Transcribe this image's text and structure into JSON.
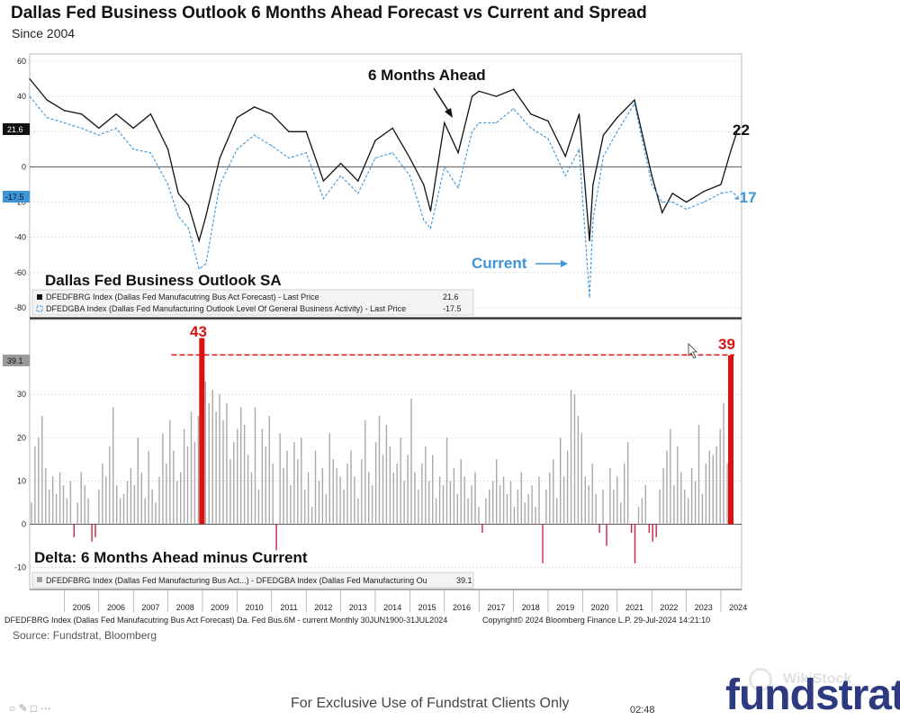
{
  "header": {
    "title": "Dallas Fed Business Outlook 6 Months Ahead Forecast vs Current and Spread",
    "subtitle": "Since 2004"
  },
  "annotations": {
    "six_months": "6 Months Ahead",
    "current": "Current",
    "top_panel_title": "Dallas Fed Business Outlook SA",
    "bottom_panel_title": "Delta: 6 Months Ahead minus Current",
    "end_forecast": "22",
    "end_current": "-17",
    "bar_2009": "43",
    "bar_2024": "39"
  },
  "legend_top": {
    "series1": "DFEDFBRG Index (Dallas Fed Manufacutring Bus Act Forecast) - Last Price",
    "series1_value": "21.6",
    "series2": "DFEDGBA Index (Dallas Fed Manufacturing Outlook Level Of General Business Activity) - Last Price",
    "series2_value": "-17.5"
  },
  "legend_bottom": {
    "series": "DFEDFBRG Index (Dallas Fed Manufacturing Bus Act...) - DFEDGBA Index (Dallas Fed Manufacturing Ou",
    "value": "39.1"
  },
  "axis_badges": {
    "forecast_last": "21.6",
    "current_last": "-17.5",
    "spread_last": "39.1"
  },
  "footer": {
    "left": "DFEDFBRG Index (Dallas Fed Manufacutring Bus Act Forecast) Da. Fed Bus.6M - current  Monthly 30JUN1900-31JUL2024",
    "right": "Copyright© 2024 Bloomberg Finance L.P.      29-Jul-2024 14:21:10",
    "source": "Source: Fundstrat, Bloomberg",
    "exclusive": "For Exclusive Use of Fundstrat Clients Only",
    "time": "02:48",
    "brand": "fundstrat",
    "watermark": "WikiStock"
  },
  "colors": {
    "forecast": "#111111",
    "current": "#3b95d8",
    "spread_pos": "#a9a9a9",
    "spread_neg": "#cc2244",
    "highlight": "#dd1111"
  },
  "chart_data": [
    {
      "type": "line",
      "title": "Dallas Fed Business Outlook SA",
      "x_labels": [
        "2005",
        "2006",
        "2007",
        "2008",
        "2009",
        "2010",
        "2011",
        "2012",
        "2013",
        "2014",
        "2015",
        "2016",
        "2017",
        "2018",
        "2019",
        "2020",
        "2021",
        "2022",
        "2023",
        "2024"
      ],
      "ylim": [
        -80,
        60
      ],
      "yticks": [
        60,
        40,
        20,
        0,
        -20,
        -40,
        -60,
        -80
      ],
      "series": [
        {
          "name": "DFEDFBRG Index (6 Months Ahead)",
          "t": [
            2004.0,
            2004.5,
            2005.0,
            2005.5,
            2006.0,
            2006.5,
            2007.0,
            2007.5,
            2008.0,
            2008.3,
            2008.6,
            2008.9,
            2009.1,
            2009.5,
            2010.0,
            2010.5,
            2011.0,
            2011.5,
            2012.0,
            2012.5,
            2013.0,
            2013.5,
            2014.0,
            2014.5,
            2015.0,
            2015.4,
            2015.6,
            2016.0,
            2016.4,
            2016.8,
            2017.0,
            2017.5,
            2018.0,
            2018.5,
            2019.0,
            2019.5,
            2019.9,
            2020.2,
            2020.3,
            2020.6,
            2021.0,
            2021.5,
            2022.0,
            2022.3,
            2022.6,
            2023.0,
            2023.5,
            2024.0,
            2024.3,
            2024.5
          ],
          "values": [
            50,
            38,
            32,
            30,
            22,
            30,
            22,
            30,
            10,
            -15,
            -22,
            -42,
            -28,
            5,
            28,
            34,
            30,
            20,
            20,
            -8,
            2,
            -8,
            15,
            22,
            5,
            -10,
            -25,
            25,
            8,
            40,
            43,
            40,
            44,
            30,
            26,
            6,
            30,
            -42,
            -10,
            18,
            28,
            38,
            -5,
            -26,
            -15,
            -20,
            -14,
            -10,
            10,
            22
          ]
        },
        {
          "name": "DFEDGBA Index (Current)",
          "t": [
            2004.0,
            2004.5,
            2005.0,
            2005.5,
            2006.0,
            2006.5,
            2007.0,
            2007.5,
            2008.0,
            2008.3,
            2008.6,
            2008.9,
            2009.1,
            2009.5,
            2010.0,
            2010.5,
            2011.0,
            2011.5,
            2012.0,
            2012.5,
            2013.0,
            2013.5,
            2014.0,
            2014.5,
            2015.0,
            2015.4,
            2015.6,
            2016.0,
            2016.4,
            2016.8,
            2017.0,
            2017.5,
            2018.0,
            2018.5,
            2019.0,
            2019.5,
            2019.9,
            2020.2,
            2020.3,
            2020.6,
            2021.0,
            2021.5,
            2022.0,
            2022.3,
            2022.6,
            2023.0,
            2023.5,
            2024.0,
            2024.3,
            2024.5
          ],
          "values": [
            40,
            28,
            25,
            22,
            18,
            22,
            10,
            8,
            -10,
            -28,
            -35,
            -58,
            -55,
            -10,
            10,
            18,
            12,
            5,
            8,
            -18,
            -5,
            -15,
            5,
            8,
            -5,
            -30,
            -35,
            0,
            -12,
            20,
            25,
            25,
            33,
            22,
            16,
            -5,
            10,
            -74,
            -30,
            6,
            20,
            36,
            -10,
            -20,
            -20,
            -24,
            -20,
            -15,
            -14,
            -17
          ]
        }
      ],
      "last_values": {
        "forecast": 21.6,
        "current": -17.5
      }
    },
    {
      "type": "bar",
      "title": "Delta: 6 Months Ahead minus Current",
      "ylim": [
        -13,
        45
      ],
      "yticks": [
        30,
        20,
        10,
        0,
        -10
      ],
      "highlight_max": 43,
      "highlight_last": 39,
      "reference_line": 39.1,
      "values": [
        5,
        18,
        20,
        25,
        13,
        8,
        11,
        7,
        12,
        9,
        6,
        10,
        -3,
        5,
        12,
        9,
        6,
        -4,
        -3,
        8,
        14,
        11,
        18,
        27,
        9,
        6,
        7,
        10,
        13,
        9,
        20,
        12,
        6,
        17,
        8,
        5,
        11,
        21,
        14,
        24,
        17,
        10,
        12,
        22,
        18,
        26,
        19,
        25,
        43,
        33,
        28,
        31,
        26,
        30,
        24,
        28,
        15,
        19,
        22,
        27,
        23,
        16,
        12,
        27,
        8,
        22,
        18,
        25,
        14,
        -6,
        21,
        13,
        17,
        9,
        19,
        15,
        20,
        8,
        12,
        4,
        17,
        10,
        13,
        7,
        21,
        15,
        13,
        11,
        8,
        14,
        17,
        11,
        6,
        15,
        24,
        12,
        9,
        19,
        25,
        16,
        23,
        18,
        12,
        14,
        20,
        10,
        16,
        29,
        12,
        8,
        14,
        18,
        10,
        16,
        6,
        11,
        9,
        20,
        10,
        13,
        7,
        15,
        11,
        6,
        9,
        12,
        4,
        -2,
        6,
        8,
        10,
        15,
        9,
        11,
        7,
        10,
        4,
        8,
        12,
        5,
        7,
        9,
        4,
        11,
        -9,
        8,
        12,
        15,
        6,
        20,
        11,
        17,
        31,
        30,
        25,
        21,
        11,
        9,
        14,
        7,
        -2,
        8,
        -5,
        13,
        8,
        11,
        5,
        14,
        19,
        -2,
        -9,
        4,
        6,
        9,
        -2,
        -4,
        -3,
        8,
        13,
        17,
        22,
        9,
        18,
        12,
        8,
        6,
        13,
        10,
        23,
        7,
        14,
        17,
        16,
        18,
        22,
        28,
        14,
        39
      ]
    }
  ]
}
